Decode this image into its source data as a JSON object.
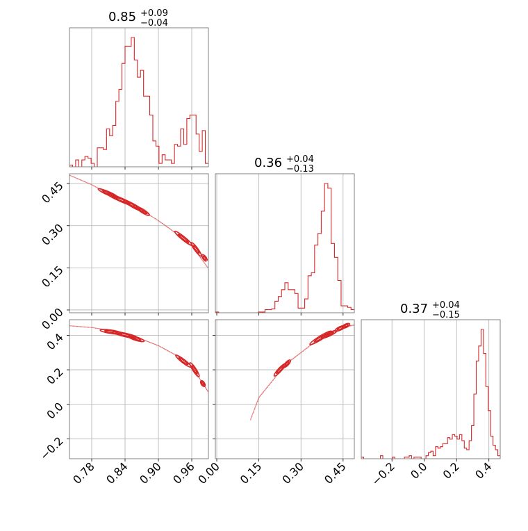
{
  "colors": {
    "series": "#d62728",
    "grid": "#b0b0b0",
    "frame": "#808080"
  },
  "chart_data": {
    "type": "corner",
    "parameters": [
      {
        "index": 0,
        "title_value": "0.85",
        "title_plus": "+0.09",
        "title_minus": "−0.04"
      },
      {
        "index": 1,
        "title_value": "0.36",
        "title_plus": "+0.04",
        "title_minus": "−0.13"
      },
      {
        "index": 2,
        "title_value": "0.37",
        "title_plus": "+0.04",
        "title_minus": "−0.15"
      }
    ],
    "axes": {
      "x0": {
        "range": [
          0.74,
          0.99
        ],
        "ticks": [
          0.78,
          0.84,
          0.9,
          0.96
        ],
        "tick_labels": [
          "0.78",
          "0.84",
          "0.90",
          "0.96"
        ]
      },
      "x1": {
        "range": [
          -0.005,
          0.49
        ],
        "ticks": [
          0.0,
          0.15,
          0.3,
          0.45
        ],
        "tick_labels": [
          "0.00",
          "0.15",
          "0.30",
          "0.45"
        ]
      },
      "x2": {
        "range": [
          -0.39,
          0.47
        ],
        "ticks": [
          -0.2,
          0.0,
          0.2,
          0.4
        ],
        "tick_labels": [
          "−0.2",
          "0.0",
          "0.2",
          "0.4"
        ]
      },
      "y1": {
        "range": [
          -0.01,
          0.485
        ],
        "ticks": [
          0.0,
          0.15,
          0.3,
          0.45
        ],
        "tick_labels": [
          "0.00",
          "0.15",
          "0.30",
          "0.45"
        ]
      },
      "y2": {
        "range": [
          -0.315,
          0.49
        ],
        "ticks": [
          -0.2,
          0.0,
          0.2,
          0.4
        ],
        "tick_labels": [
          "−0.2",
          "0.0",
          "0.2",
          "0.4"
        ]
      }
    },
    "histograms": [
      {
        "param": 0,
        "bin_range": [
          0.74,
          0.99
        ],
        "counts": [
          1,
          0,
          4,
          0,
          4,
          6,
          5,
          2,
          0,
          11,
          11,
          10,
          22,
          18,
          24,
          38,
          45,
          60,
          70,
          70,
          75,
          62,
          52,
          56,
          41,
          41,
          30,
          15,
          12,
          2,
          7,
          4,
          4,
          2,
          13,
          12,
          22,
          13,
          28,
          30,
          30,
          19,
          9,
          21,
          2
        ]
      },
      {
        "param": 1,
        "bin_range": [
          -0.005,
          0.49
        ],
        "counts": [
          1,
          0,
          0,
          0,
          0,
          0,
          0,
          0,
          0,
          0,
          0,
          0,
          0,
          1,
          1,
          4,
          4,
          5,
          15,
          21,
          30,
          39,
          30,
          30,
          25,
          6,
          6,
          18,
          48,
          52,
          88,
          103,
          132,
          168,
          162,
          90,
          72,
          42,
          9,
          9,
          7,
          4
        ]
      },
      {
        "param": 2,
        "bin_range": [
          -0.39,
          0.47
        ],
        "counts": [
          1,
          0,
          0,
          0,
          0,
          0,
          0,
          0,
          2,
          0,
          0,
          0,
          0,
          1,
          0,
          0,
          0,
          0,
          1,
          1,
          2,
          0,
          1,
          1,
          1,
          0,
          0,
          2,
          4,
          5,
          2,
          8,
          7,
          8,
          10,
          10,
          14,
          13,
          16,
          15,
          13,
          16,
          12,
          7,
          6,
          12,
          22,
          43,
          65,
          75,
          86,
          70,
          48,
          32,
          15,
          9,
          6,
          2
        ]
      }
    ],
    "contours": [
      {
        "x_param": 0,
        "y_param": 1,
        "curve_x": [
          0.74,
          0.78,
          0.8,
          0.84,
          0.86,
          0.9,
          0.92,
          0.94,
          0.96,
          0.99
        ],
        "curve_y": [
          0.48,
          0.446,
          0.425,
          0.39,
          0.368,
          0.318,
          0.29,
          0.26,
          0.228,
          0.148
        ],
        "blobs": [
          {
            "center": [
              0.81,
              0.415
            ],
            "length": 0.04,
            "width": 0.006
          },
          {
            "center": [
              0.833,
              0.392
            ],
            "length": 0.055,
            "width": 0.008
          },
          {
            "center": [
              0.855,
              0.371
            ],
            "length": 0.04,
            "width": 0.007
          },
          {
            "center": [
              0.872,
              0.352
            ],
            "length": 0.028,
            "width": 0.005
          },
          {
            "center": [
              0.945,
              0.255
            ],
            "length": 0.04,
            "width": 0.007
          },
          {
            "center": [
              0.968,
              0.216
            ],
            "length": 0.03,
            "width": 0.006
          },
          {
            "center": [
              0.983,
              0.185
            ],
            "length": 0.014,
            "width": 0.004
          }
        ]
      },
      {
        "x_param": 0,
        "y_param": 2,
        "curve_x": [
          0.74,
          0.78,
          0.82,
          0.84,
          0.86,
          0.88,
          0.9,
          0.92,
          0.94,
          0.96,
          0.98,
          0.99
        ],
        "curve_y": [
          0.455,
          0.445,
          0.425,
          0.41,
          0.39,
          0.365,
          0.34,
          0.305,
          0.27,
          0.22,
          0.12,
          0.07
        ],
        "blobs": [
          {
            "center": [
              0.815,
              0.42
            ],
            "length": 0.04,
            "width": 0.012
          },
          {
            "center": [
              0.84,
              0.402
            ],
            "length": 0.045,
            "width": 0.016
          },
          {
            "center": [
              0.86,
              0.38
            ],
            "length": 0.03,
            "width": 0.012
          },
          {
            "center": [
              0.945,
              0.25
            ],
            "length": 0.035,
            "width": 0.015
          },
          {
            "center": [
              0.965,
              0.2
            ],
            "length": 0.03,
            "width": 0.013
          },
          {
            "center": [
              0.98,
              0.12
            ],
            "length": 0.012,
            "width": 0.006
          }
        ]
      },
      {
        "x_param": 1,
        "y_param": 2,
        "curve_x": [
          0.12,
          0.15,
          0.18,
          0.22,
          0.26,
          0.3,
          0.34,
          0.38,
          0.42,
          0.46,
          0.49
        ],
        "curve_y": [
          -0.09,
          0.04,
          0.1,
          0.18,
          0.25,
          0.3,
          0.35,
          0.39,
          0.42,
          0.45,
          0.46
        ],
        "blobs": [
          {
            "center": [
              0.225,
              0.2
            ],
            "length": 0.06,
            "width": 0.018
          },
          {
            "center": [
              0.25,
              0.235
            ],
            "length": 0.035,
            "width": 0.012
          },
          {
            "center": [
              0.37,
              0.385
            ],
            "length": 0.09,
            "width": 0.022
          },
          {
            "center": [
              0.4,
              0.405
            ],
            "length": 0.06,
            "width": 0.018
          },
          {
            "center": [
              0.44,
              0.44
            ],
            "length": 0.04,
            "width": 0.014
          },
          {
            "center": [
              0.46,
              0.455
            ],
            "length": 0.03,
            "width": 0.01
          }
        ]
      }
    ]
  }
}
